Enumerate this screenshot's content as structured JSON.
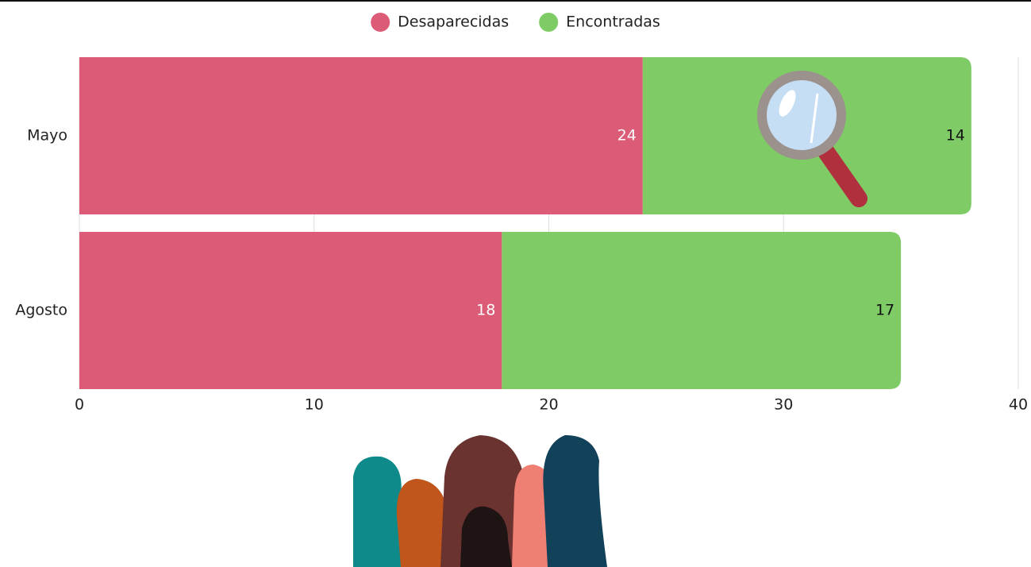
{
  "chart_data": {
    "type": "stacked_bar_horizontal",
    "categories": [
      "Mayo",
      "Agosto"
    ],
    "series": [
      {
        "name": "Desaparecidas",
        "color": "#dc5b77",
        "values": [
          24,
          18
        ]
      },
      {
        "name": "Encontradas",
        "color": "#7fcb66",
        "values": [
          14,
          17
        ]
      }
    ],
    "xlim": [
      0,
      40
    ],
    "xticks": [
      0,
      10,
      20,
      30,
      40
    ],
    "grid": true,
    "legend": "top"
  }
}
